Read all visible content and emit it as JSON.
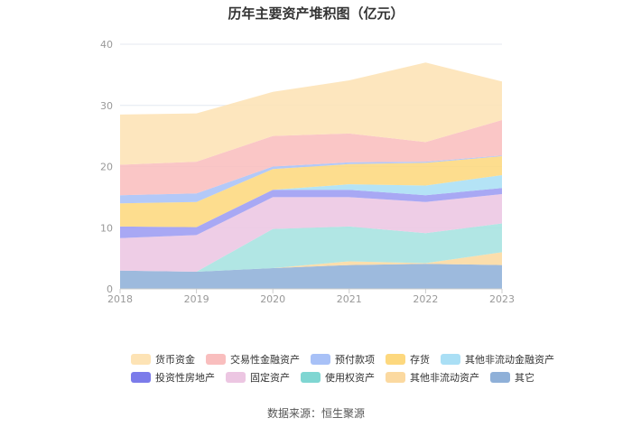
{
  "chart_data": {
    "type": "area",
    "title": "历年主要资产堆积图（亿元）",
    "xlabel": "",
    "ylabel": "",
    "categories": [
      "2018",
      "2019",
      "2020",
      "2021",
      "2022",
      "2023"
    ],
    "ylim": [
      0,
      40
    ],
    "yticks": [
      0,
      10,
      20,
      30,
      40
    ],
    "grid": true,
    "legend_position": "bottom",
    "series_bottom_to_top": [
      {
        "name": "其它",
        "color": "#8fb0d8",
        "values": [
          3.0,
          2.8,
          3.4,
          3.9,
          4.1,
          3.9
        ]
      },
      {
        "name": "其他非流动资产",
        "color": "#fbd9a0",
        "values": [
          0.0,
          0.0,
          0.0,
          0.6,
          0.1,
          2.1
        ]
      },
      {
        "name": "使用权资产",
        "color": "#a6e2e0",
        "values": [
          0.0,
          0.0,
          6.4,
          5.7,
          4.9,
          4.7
        ]
      },
      {
        "name": "固定资产",
        "color": "#ecc6e2",
        "values": [
          5.3,
          6.0,
          5.2,
          4.8,
          5.1,
          4.8
        ]
      },
      {
        "name": "投资性房地产",
        "color": "#9c9cf2",
        "values": [
          1.9,
          1.3,
          1.2,
          1.2,
          1.1,
          1.0
        ]
      },
      {
        "name": "其他非流动金融资产",
        "color": "#aadff5",
        "values": [
          0.0,
          0.0,
          0.0,
          0.9,
          1.6,
          2.1
        ]
      },
      {
        "name": "存货",
        "color": "#fdd87e",
        "values": [
          3.8,
          4.1,
          3.4,
          3.3,
          3.7,
          3.1
        ]
      },
      {
        "name": "预付款项",
        "color": "#a8c1f7",
        "values": [
          1.3,
          1.4,
          0.4,
          0.3,
          0.2,
          0.1
        ]
      },
      {
        "name": "交易性金融资产",
        "color": "#f9bebe",
        "values": [
          5.0,
          5.2,
          5.0,
          4.7,
          3.2,
          5.8
        ]
      },
      {
        "name": "货币资金",
        "color": "#fde3b5",
        "values": [
          8.2,
          7.9,
          7.2,
          8.7,
          13.0,
          6.3
        ]
      }
    ]
  },
  "legend": {
    "row1": [
      {
        "label": "货币资金",
        "color": "#fde3b5"
      },
      {
        "label": "交易性金融资产",
        "color": "#f9bebe"
      },
      {
        "label": "预付款项",
        "color": "#a8c1f7"
      },
      {
        "label": "存货",
        "color": "#fdd87e"
      },
      {
        "label": "其他非流动金融资产",
        "color": "#aadff5"
      }
    ],
    "row2": [
      {
        "label": "投资性房地产",
        "color": "#7b7bea"
      },
      {
        "label": "固定资产",
        "color": "#ecc6e2"
      },
      {
        "label": "使用权资产",
        "color": "#7fd6d2"
      },
      {
        "label": "其他非流动资产",
        "color": "#fbd9a0"
      },
      {
        "label": "其它",
        "color": "#8fb0d8"
      }
    ]
  },
  "source": "数据来源：恒生聚源"
}
